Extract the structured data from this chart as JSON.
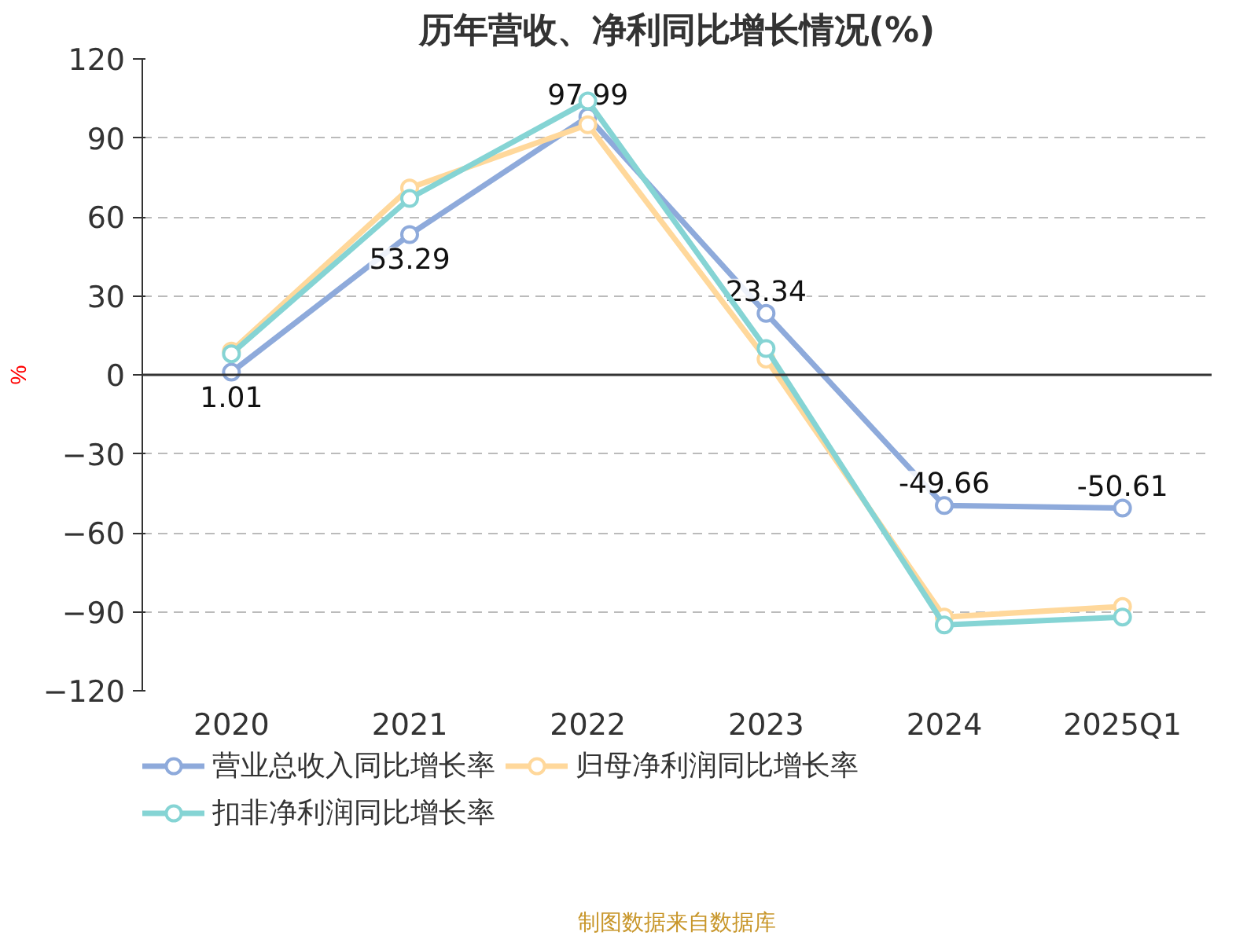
{
  "chart_data": {
    "type": "line",
    "title": "历年营收、净利同比增长情况(%)",
    "ylabel": "%",
    "categories": [
      "2020",
      "2021",
      "2022",
      "2023",
      "2024",
      "2025Q1"
    ],
    "series": [
      {
        "name": "营业总收入同比增长率",
        "color": "#8eaadb",
        "values": [
          1.01,
          53.29,
          97.99,
          23.34,
          -49.66,
          -50.61
        ],
        "value_labels": [
          "1.01",
          "53.29",
          "97.99",
          "23.34",
          "-49.66",
          "-50.61"
        ]
      },
      {
        "name": "归母净利润同比增长率",
        "color": "#ffd89b",
        "values": [
          9,
          71,
          95,
          6,
          -92,
          -88
        ]
      },
      {
        "name": "扣非净利润同比增长率",
        "color": "#85d4d4",
        "values": [
          8,
          67,
          104,
          10,
          -95,
          -92
        ]
      }
    ],
    "ylim": [
      -120,
      120
    ],
    "yticks": [
      -120,
      -90,
      -60,
      -30,
      0,
      30,
      60,
      90,
      120
    ],
    "grid": "y",
    "legend": "bottom",
    "marker": "circle",
    "line_style": "solid",
    "annotations": [
      "制图数据来自数据库"
    ]
  }
}
